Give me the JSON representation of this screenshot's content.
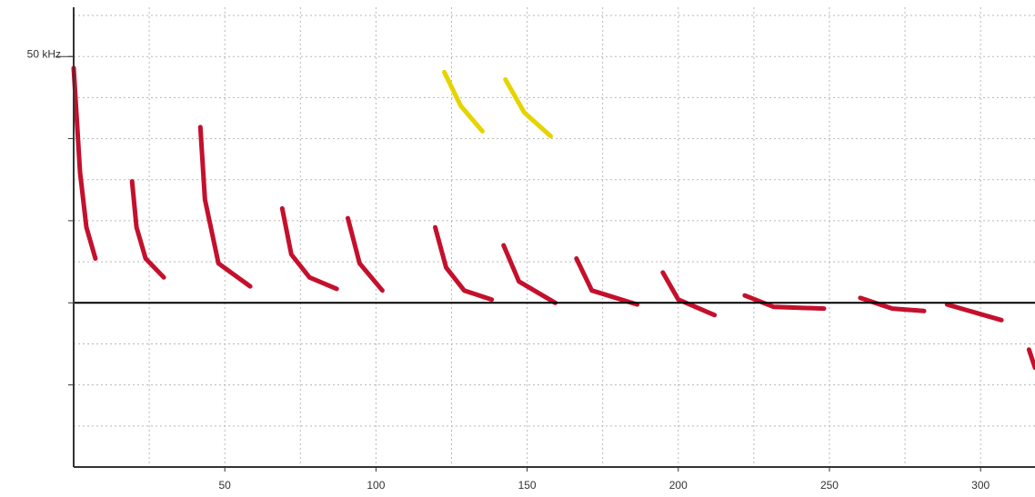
{
  "chart_data": {
    "type": "spectrogram",
    "xlim": [
      0,
      318
    ],
    "ylim": [
      0,
      56
    ],
    "xticks": [
      50,
      100,
      150,
      200,
      250,
      300
    ],
    "yticks": [
      {
        "value": 50,
        "label": "50 kHz"
      }
    ],
    "xgrid": [
      25,
      50,
      75,
      100,
      125,
      150,
      175,
      200,
      225,
      250,
      275,
      300
    ],
    "ygrid": [
      5,
      10,
      15,
      20,
      25,
      30,
      35,
      40,
      45,
      50,
      55
    ],
    "ymarks": [
      10,
      20,
      30,
      40,
      50
    ],
    "reference_line": 20,
    "grid": true,
    "series": [
      {
        "color": "#c4102c",
        "x": [
          0,
          2.1,
          4.2,
          7.2
        ],
        "y": [
          48.6,
          35.9,
          29.2,
          25.4
        ]
      },
      {
        "color": "#c4102c",
        "x": [
          19.3,
          20.8,
          23.8,
          29.8
        ],
        "y": [
          34.8,
          29.2,
          25.4,
          23.1
        ]
      },
      {
        "color": "#c4102c",
        "x": [
          41.9,
          43.4,
          47.9,
          58.4
        ],
        "y": [
          41.4,
          32.6,
          24.8,
          22.0
        ]
      },
      {
        "color": "#c4102c",
        "x": [
          69,
          72,
          78,
          87
        ],
        "y": [
          31.5,
          25.9,
          23.1,
          21.7
        ]
      },
      {
        "color": "#c4102c",
        "x": [
          90.7,
          94.6,
          102.1
        ],
        "y": [
          30.3,
          24.8,
          21.5
        ]
      },
      {
        "color": "#c4102c",
        "x": [
          119.6,
          123.2,
          129.2,
          138.3
        ],
        "y": [
          29.2,
          24.3,
          21.5,
          20.4
        ]
      },
      {
        "color": "#c4102c",
        "x": [
          142.2,
          147.3,
          159.3
        ],
        "y": [
          27.0,
          22.6,
          20.0
        ]
      },
      {
        "color": "#c4102c",
        "x": [
          166.3,
          171.4,
          186.4
        ],
        "y": [
          25.4,
          21.5,
          19.8
        ]
      },
      {
        "color": "#c4102c",
        "x": [
          194.9,
          200,
          212
        ],
        "y": [
          23.7,
          20.4,
          18.5
        ]
      },
      {
        "color": "#c4102c",
        "x": [
          222,
          231.6,
          248.2
        ],
        "y": [
          20.9,
          19.5,
          19.3
        ]
      },
      {
        "color": "#c4102c",
        "x": [
          260.2,
          270.8,
          281.3
        ],
        "y": [
          20.6,
          19.3,
          19.0
        ]
      },
      {
        "color": "#c4102c",
        "x": [
          288.9,
          306.9
        ],
        "y": [
          19.8,
          17.9
        ]
      },
      {
        "color": "#c4102c",
        "x": [
          316,
          318
        ],
        "y": [
          14.3,
          12.1
        ]
      },
      {
        "color": "#e6d400",
        "x": [
          122.6,
          128,
          135.2
        ],
        "y": [
          48.1,
          44.0,
          40.9
        ]
      },
      {
        "color": "#e6d400",
        "x": [
          142.8,
          149,
          157.8
        ],
        "y": [
          47.2,
          43.2,
          40.3
        ]
      }
    ]
  }
}
